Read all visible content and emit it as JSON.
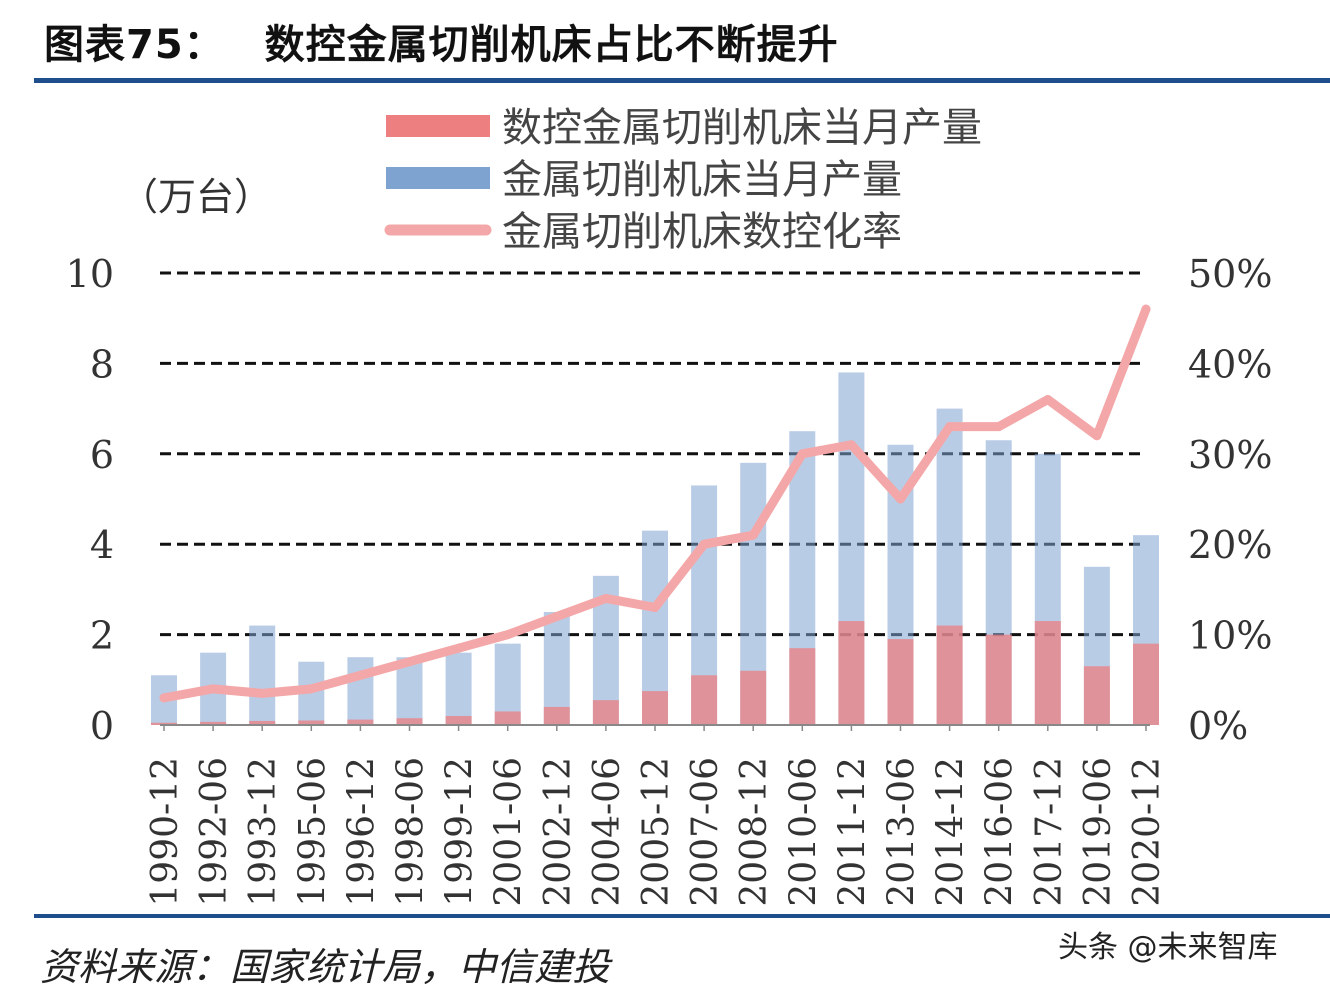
{
  "header": {
    "figure_no": "图表75：",
    "title": "数控金属切削机床占比不断提升"
  },
  "footer": {
    "source": "资料来源：国家统计局，中信建投",
    "watermark": "头条 @未来智库"
  },
  "colors": {
    "cnc_bar": "#ee7f80",
    "total_bar": "#7fa3d1",
    "rate_line": "#f4a7a8",
    "rule": "#1f4e8c"
  },
  "chart_data": {
    "type": "bar",
    "unit_label": "（万台）",
    "y_left": {
      "min": 0,
      "max": 10,
      "ticks": [
        "0",
        "2",
        "4",
        "6",
        "8",
        "10"
      ]
    },
    "y_right": {
      "min": 0,
      "max": 0.5,
      "ticks": [
        "0%",
        "10%",
        "20%",
        "30%",
        "40%",
        "50%"
      ]
    },
    "x_tick_labels": [
      "1990-12",
      "1992-06",
      "1993-12",
      "1995-06",
      "1996-12",
      "1998-06",
      "1999-12",
      "2001-06",
      "2002-12",
      "2004-06",
      "2005-12",
      "2007-06",
      "2008-12",
      "2010-06",
      "2011-12",
      "2013-06",
      "2014-12",
      "2016-06",
      "2017-12",
      "2019-06",
      "2020-12"
    ],
    "grid": "dashed",
    "legend_position": "top-center",
    "series": [
      {
        "name": "数控金属切削机床当月产量",
        "kind": "bar",
        "axis": "left",
        "x": [
          "1990-12",
          "1992-06",
          "1993-12",
          "1995-06",
          "1996-12",
          "1998-06",
          "1999-12",
          "2001-06",
          "2002-12",
          "2004-06",
          "2005-12",
          "2007-06",
          "2008-12",
          "2010-06",
          "2011-12",
          "2013-06",
          "2014-12",
          "2016-06",
          "2017-12",
          "2019-06",
          "2020-12"
        ],
        "values": [
          0.05,
          0.07,
          0.09,
          0.1,
          0.12,
          0.15,
          0.2,
          0.3,
          0.4,
          0.55,
          0.75,
          1.1,
          1.2,
          1.7,
          2.3,
          1.9,
          2.2,
          2.0,
          2.3,
          1.3,
          1.8
        ]
      },
      {
        "name": "金属切削机床当月产量",
        "kind": "bar",
        "axis": "left",
        "x": [
          "1990-12",
          "1992-06",
          "1993-12",
          "1995-06",
          "1996-12",
          "1998-06",
          "1999-12",
          "2001-06",
          "2002-12",
          "2004-06",
          "2005-12",
          "2007-06",
          "2008-12",
          "2010-06",
          "2011-12",
          "2013-06",
          "2014-12",
          "2016-06",
          "2017-12",
          "2019-06",
          "2020-12"
        ],
        "values": [
          1.1,
          1.6,
          2.2,
          1.4,
          1.5,
          1.5,
          1.6,
          1.8,
          2.5,
          3.3,
          4.3,
          5.3,
          5.8,
          6.5,
          7.8,
          6.2,
          7.0,
          6.3,
          6.0,
          3.5,
          4.2
        ]
      },
      {
        "name": "金属切削机床数控化率",
        "kind": "line",
        "axis": "right",
        "x": [
          "1990-12",
          "1992-06",
          "1993-12",
          "1995-06",
          "1996-12",
          "1998-06",
          "1999-12",
          "2001-06",
          "2002-12",
          "2004-06",
          "2005-12",
          "2007-06",
          "2008-12",
          "2010-06",
          "2011-12",
          "2013-06",
          "2014-12",
          "2016-06",
          "2017-12",
          "2019-06",
          "2020-12"
        ],
        "values": [
          0.03,
          0.04,
          0.035,
          0.04,
          0.055,
          0.07,
          0.085,
          0.1,
          0.12,
          0.14,
          0.13,
          0.2,
          0.21,
          0.3,
          0.31,
          0.25,
          0.33,
          0.33,
          0.36,
          0.32,
          0.46
        ]
      }
    ]
  }
}
